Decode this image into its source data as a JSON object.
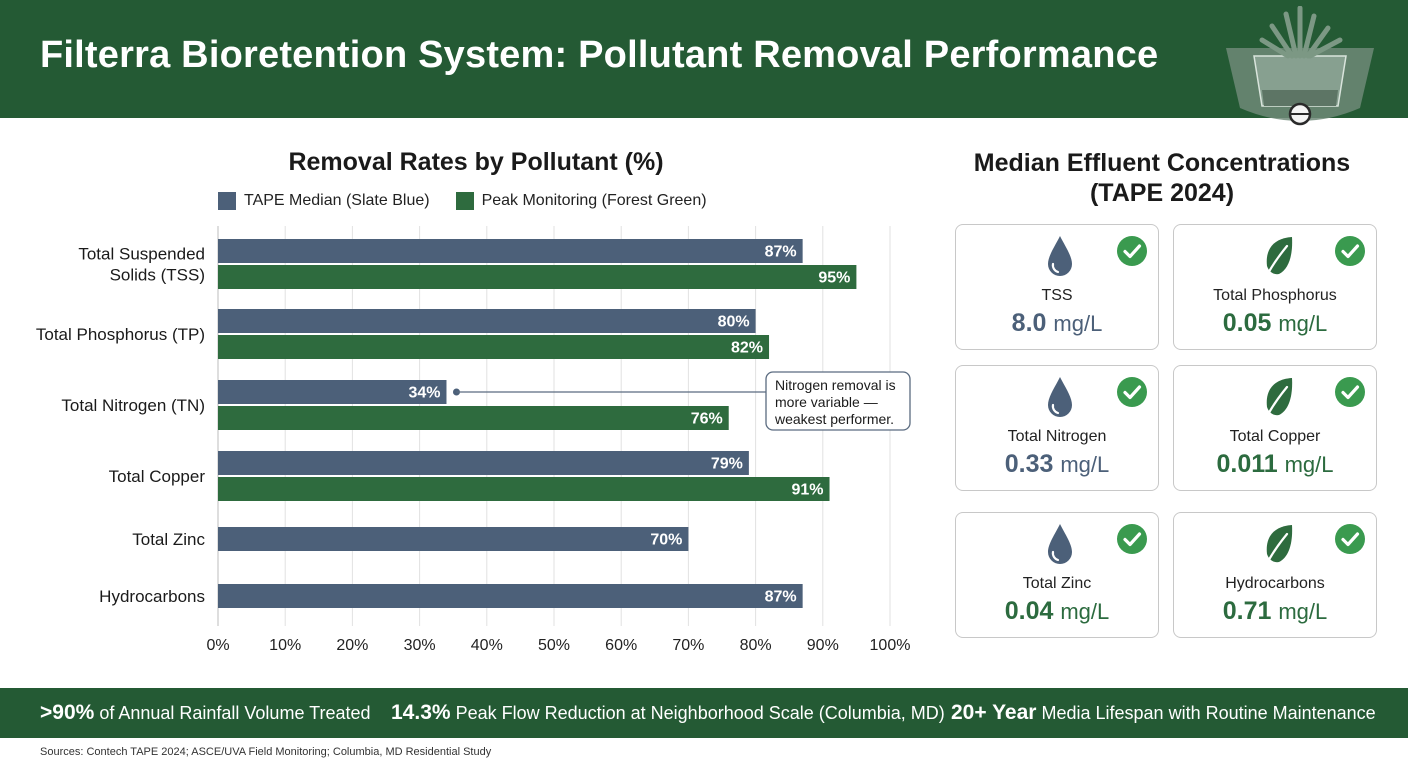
{
  "header": {
    "title": "Filterra Bioretention System: Pollutant Removal Performance"
  },
  "chart_data": {
    "type": "bar",
    "orientation": "horizontal",
    "title": "Removal Rates by Pollutant (%)",
    "categories": [
      "Total Suspended Solids (TSS)",
      "Total Phosphorus (TP)",
      "Total Nitrogen (TN)",
      "Total Copper",
      "Total Zinc",
      "Hydrocarbons"
    ],
    "category_lines": [
      [
        "Total Suspended",
        "Solids (TSS)"
      ],
      [
        "Total Phosphorus (TP)"
      ],
      [
        "Total Nitrogen (TN)"
      ],
      [
        "Total Copper"
      ],
      [
        "Total Zinc"
      ],
      [
        "Hydrocarbons"
      ]
    ],
    "series": [
      {
        "name": "TAPE Median (Slate Blue)",
        "color": "#4c6079",
        "values": [
          87,
          80,
          34,
          79,
          70,
          87
        ],
        "labels": [
          "87%",
          "80%",
          "34%",
          "79%",
          "70%",
          "87%"
        ]
      },
      {
        "name": "Peak Monitoring (Forest Green)",
        "color": "#2e6b3e",
        "values": [
          95,
          82,
          76,
          91,
          null,
          null
        ],
        "labels": [
          "95%",
          "82%",
          "76%",
          "91%",
          "",
          ""
        ]
      }
    ],
    "xlim": [
      0,
      100
    ],
    "xticks": [
      "0%",
      "10%",
      "20%",
      "30%",
      "40%",
      "50%",
      "60%",
      "70%",
      "80%",
      "90%",
      "100%"
    ],
    "grid": true,
    "legend_position": "top",
    "annotation": {
      "lines": [
        "Nitrogen removal is",
        "more variable —",
        "weakest performer."
      ],
      "category": "Total Nitrogen (TN)",
      "series": "TAPE Median (Slate Blue)"
    }
  },
  "panel": {
    "title_line1": "Median Effluent Concentrations",
    "title_line2": "(TAPE 2024)",
    "cards": [
      {
        "label": "TSS",
        "value": "8.0",
        "unit": "mg/L",
        "icon": "water-drop-icon",
        "tone": "blue"
      },
      {
        "label": "Total Phosphorus",
        "value": "0.05",
        "unit": "mg/L",
        "icon": "leaf-icon",
        "tone": "green"
      },
      {
        "label": "Total Nitrogen",
        "value": "0.33",
        "unit": "mg/L",
        "icon": "water-drop-icon",
        "tone": "blue"
      },
      {
        "label": "Total Copper",
        "value": "0.011",
        "unit": "mg/L",
        "icon": "leaf-icon",
        "tone": "green"
      },
      {
        "label": "Total Zinc",
        "value": "0.04",
        "unit": "mg/L",
        "icon": "water-drop-icon",
        "tone": "green"
      },
      {
        "label": "Hydrocarbons",
        "value": "0.71",
        "unit": "mg/L",
        "icon": "leaf-icon",
        "tone": "green"
      }
    ]
  },
  "stats": [
    {
      "bold": ">90%",
      "text": "of Annual Rainfall Volume Treated"
    },
    {
      "bold": "14.3%",
      "text": "Peak Flow Reduction at Neighborhood Scale (Columbia, MD)"
    },
    {
      "bold": "20+ Year",
      "text": "Media Lifespan with Routine Maintenance"
    }
  ],
  "sources": "Sources: Contech TAPE 2024; ASCE/UVA Field Monitoring; Columbia, MD Residential Study",
  "colors": {
    "header_bg": "#245a34",
    "slate_blue": "#4c6079",
    "forest_green": "#2e6b3e",
    "check_green": "#3a9a4f"
  }
}
